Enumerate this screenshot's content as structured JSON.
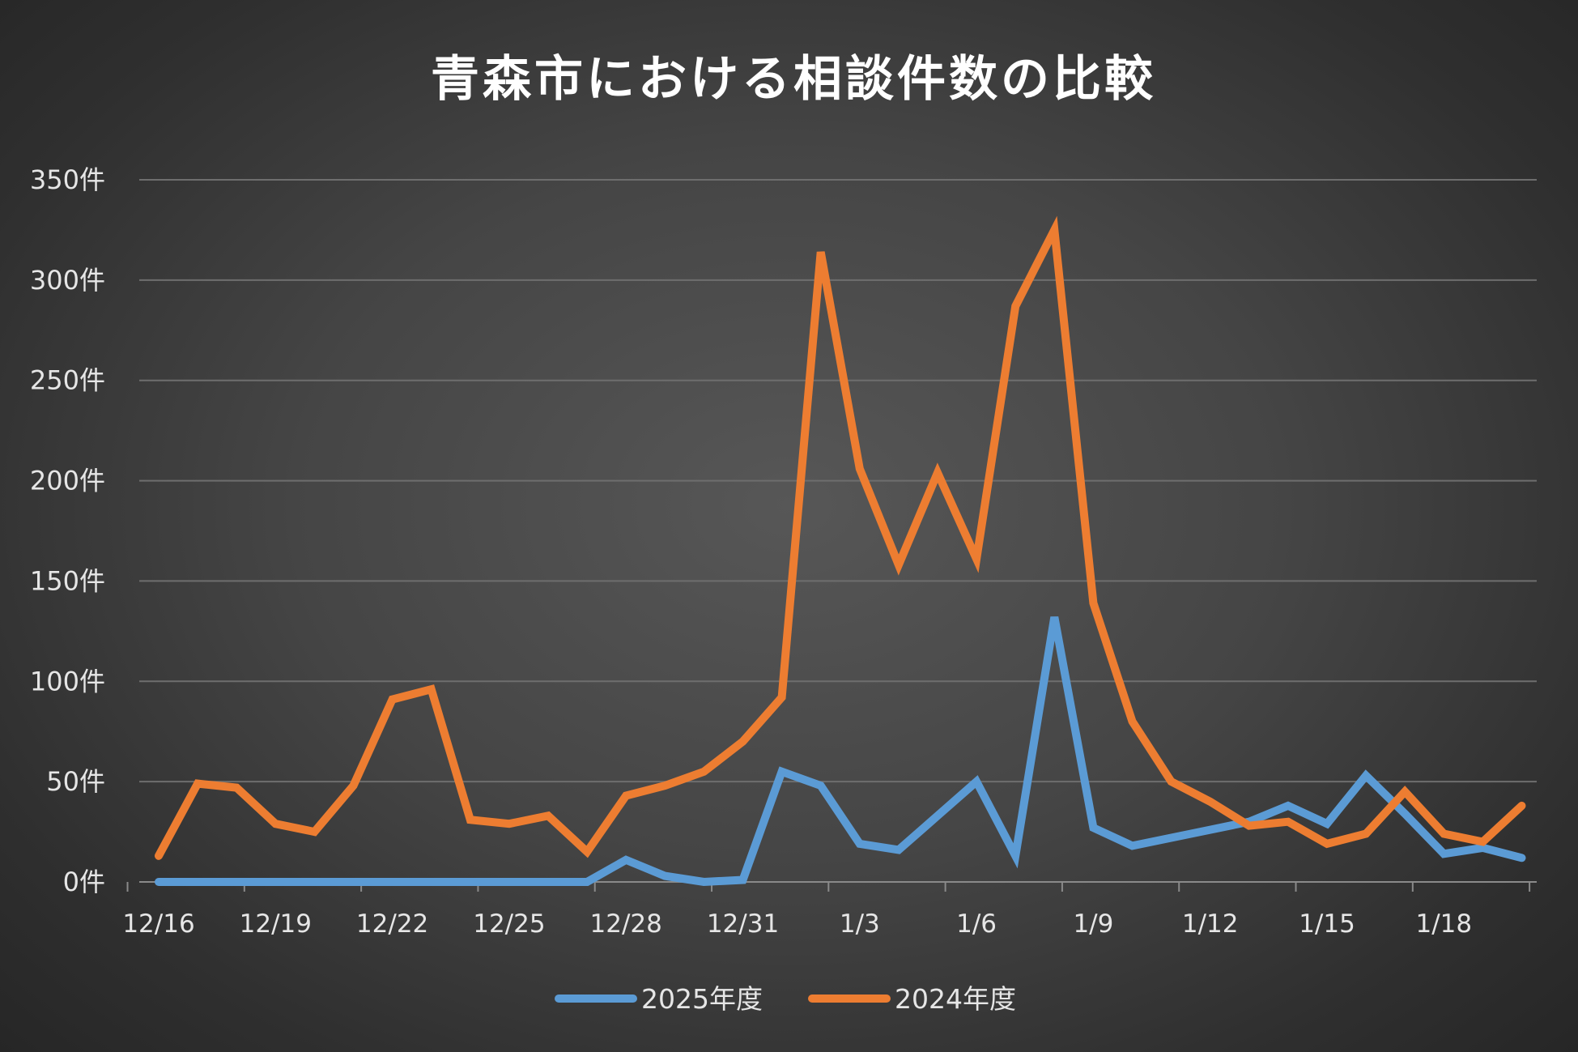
{
  "chart_data": {
    "type": "line",
    "title": "青森市における相談件数の比較",
    "xlabel": "",
    "ylabel": "",
    "ylim": [
      0,
      350
    ],
    "y_ticks": [
      0,
      50,
      100,
      150,
      200,
      250,
      300,
      350
    ],
    "y_tick_suffix": "件",
    "y_tick_labels": [
      "0件",
      "50件",
      "100件",
      "150件",
      "200件",
      "250件",
      "300件",
      "350件"
    ],
    "grid": true,
    "legend_position": "bottom",
    "categories": [
      "12/16",
      "12/17",
      "12/18",
      "12/19",
      "12/20",
      "12/21",
      "12/22",
      "12/23",
      "12/24",
      "12/25",
      "12/26",
      "12/27",
      "12/28",
      "12/29",
      "12/30",
      "12/31",
      "1/1",
      "1/2",
      "1/3",
      "1/4",
      "1/5",
      "1/6",
      "1/7",
      "1/8",
      "1/9",
      "1/10",
      "1/11",
      "1/12",
      "1/13",
      "1/14",
      "1/15",
      "1/16",
      "1/17",
      "1/18",
      "1/19",
      "1/20"
    ],
    "x_tick_labels": [
      "12/16",
      "12/19",
      "12/22",
      "12/25",
      "12/28",
      "12/31",
      "1/3",
      "1/6",
      "1/9",
      "1/12",
      "1/15",
      "1/18"
    ],
    "series": [
      {
        "name": "2025年度",
        "color": "#5b9bd5",
        "values": [
          0,
          0,
          0,
          0,
          0,
          0,
          0,
          0,
          0,
          0,
          0,
          0,
          11,
          3,
          0,
          1,
          55,
          48,
          19,
          16,
          33,
          50,
          13,
          132,
          27,
          18,
          22,
          26,
          30,
          38,
          29,
          53,
          34,
          14,
          17,
          12
        ]
      },
      {
        "name": "2024年度",
        "color": "#ed7d31",
        "values": [
          13,
          49,
          47,
          29,
          25,
          48,
          91,
          96,
          31,
          29,
          33,
          15,
          43,
          48,
          55,
          70,
          92,
          314,
          206,
          158,
          204,
          161,
          287,
          325,
          139,
          80,
          50,
          40,
          28,
          30,
          19,
          24,
          45,
          24,
          20,
          38
        ]
      }
    ]
  }
}
